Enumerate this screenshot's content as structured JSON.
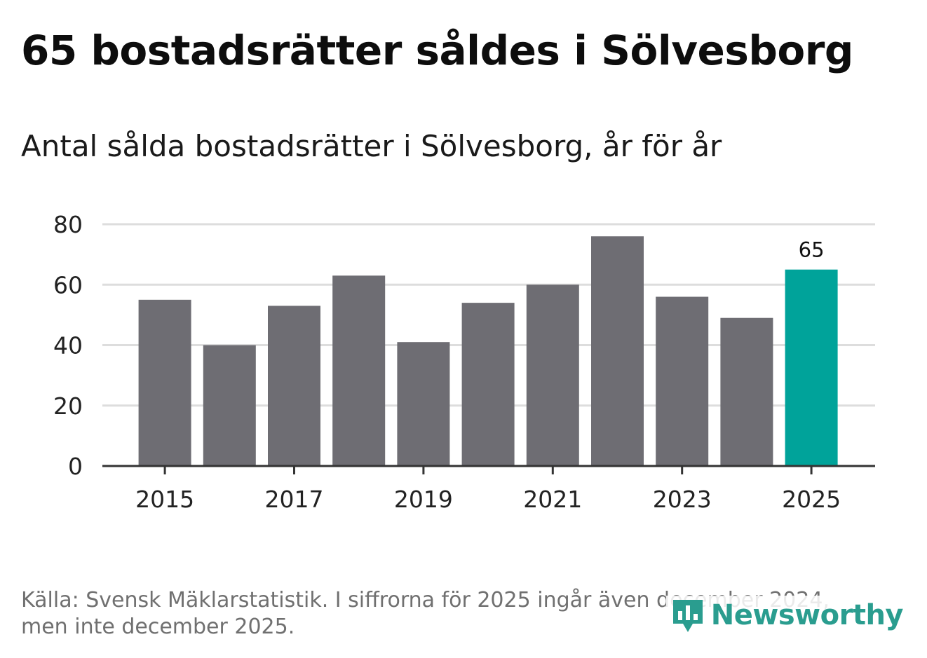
{
  "title": "65 bostadsrätter såldes i Sölvesborg",
  "subtitle": "Antal sålda bostadsrätter i Sölvesborg, år för år",
  "footer": {
    "line1": "Källa: Svensk Mäklarstatistik. I siffrorna för 2025 ingår även december 2024,",
    "line2": "men inte december 2025."
  },
  "logo": {
    "text": "Newsworthy",
    "icon": "newsworthy-logo-icon"
  },
  "colors": {
    "bar": "#6e6d73",
    "highlight": "#00a39a",
    "grid": "#dddddd",
    "axis": "#333333",
    "brand": "#2a9d8f"
  },
  "chart_data": {
    "type": "bar",
    "title": "Antal sålda bostadsrätter i Sölvesborg, år för år",
    "xlabel": "",
    "ylabel": "",
    "categories": [
      "2015",
      "2016",
      "2017",
      "2018",
      "2019",
      "2020",
      "2021",
      "2022",
      "2023",
      "2024",
      "2025"
    ],
    "values": [
      55,
      40,
      53,
      63,
      41,
      54,
      60,
      76,
      56,
      49,
      65
    ],
    "highlight_index": 10,
    "data_labels": [
      {
        "category": "2025",
        "text": "65"
      }
    ],
    "ylim": [
      0,
      80
    ],
    "yticks": [
      0,
      20,
      40,
      60,
      80
    ],
    "xtick_labels": [
      "2015",
      "2017",
      "2019",
      "2021",
      "2023",
      "2025"
    ],
    "grid": true,
    "legend": "none"
  }
}
